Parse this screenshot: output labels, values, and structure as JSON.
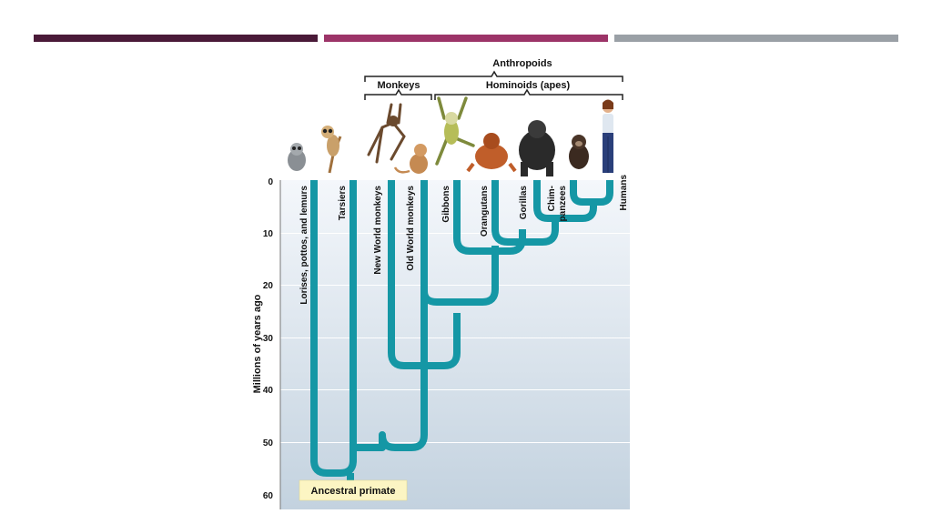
{
  "slide": {
    "accent_bars": [
      "#4a1a38",
      "#9c3468",
      "#9aa0a6"
    ]
  },
  "diagram": {
    "group_labels": {
      "anthropoids": "Anthropoids",
      "monkeys": "Monkeys",
      "hominoids": "Hominoids (apes)"
    },
    "axis": {
      "label": "Millions of years ago",
      "ticks": [
        0,
        10,
        20,
        30,
        40,
        50,
        60
      ]
    },
    "taxa": [
      {
        "name": "Lorises, pottos, and lemurs"
      },
      {
        "name": "Tarsiers"
      },
      {
        "name": "New World monkeys"
      },
      {
        "name": "Old World monkeys"
      },
      {
        "name": "Gibbons"
      },
      {
        "name": "Orangutans"
      },
      {
        "name": "Gorillas"
      },
      {
        "name": "Chim-",
        "name2": "panzees"
      },
      {
        "name": "Humans"
      }
    ],
    "root_label": "Ancestral primate",
    "colors": {
      "branch": "#1597a5",
      "background_top": "#f4f7fb",
      "background_bottom": "#c3d2df",
      "root_box": "#fcf5c3"
    },
    "animal_icons": [
      "loris-icon",
      "tarsier-icon",
      "spider-monkey-icon",
      "macaque-icon",
      "gibbon-icon",
      "orangutan-icon",
      "gorilla-icon",
      "chimpanzee-icon",
      "human-icon"
    ]
  }
}
